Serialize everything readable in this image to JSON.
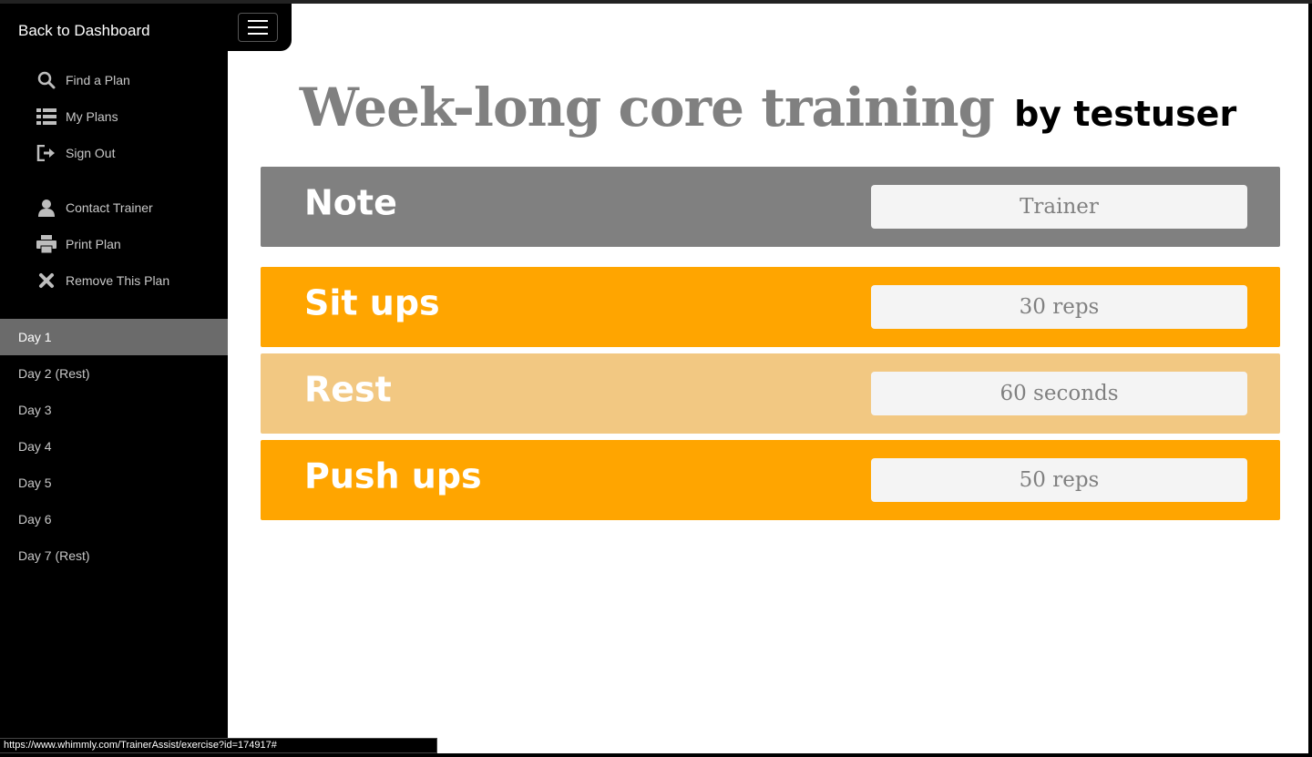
{
  "sidebar": {
    "back_label": "Back to Dashboard",
    "menu": [
      {
        "label": "Find a Plan",
        "icon": "search-icon"
      },
      {
        "label": "My Plans",
        "icon": "list-icon"
      },
      {
        "label": "Sign Out",
        "icon": "sign-out-icon"
      },
      {
        "label": "Contact Trainer",
        "icon": "user-icon"
      },
      {
        "label": "Print Plan",
        "icon": "print-icon"
      },
      {
        "label": "Remove This Plan",
        "icon": "close-icon"
      }
    ],
    "days": [
      {
        "label": "Day 1",
        "active": true
      },
      {
        "label": "Day 2 (Rest)",
        "active": false
      },
      {
        "label": "Day 3",
        "active": false
      },
      {
        "label": "Day 4",
        "active": false
      },
      {
        "label": "Day 5",
        "active": false
      },
      {
        "label": "Day 6",
        "active": false
      },
      {
        "label": "Day 7 (Rest)",
        "active": false
      }
    ]
  },
  "main": {
    "title": "Week-long core training",
    "author": "by testuser",
    "cards": [
      {
        "label": "Note",
        "value": "Trainer",
        "kind": "note"
      },
      {
        "label": "Sit ups",
        "value": "30 reps",
        "kind": "exercise"
      },
      {
        "label": "Rest",
        "value": "60 seconds",
        "kind": "rest"
      },
      {
        "label": "Push ups",
        "value": "50 reps",
        "kind": "exercise"
      }
    ]
  },
  "status_bar": {
    "url": "https://www.whimmly.com/TrainerAssist/exercise?id=174917#"
  },
  "colors": {
    "note": "#808080",
    "exercise": "#ffa500",
    "rest": "#f2c882",
    "active_day": "#6b6b6b"
  }
}
